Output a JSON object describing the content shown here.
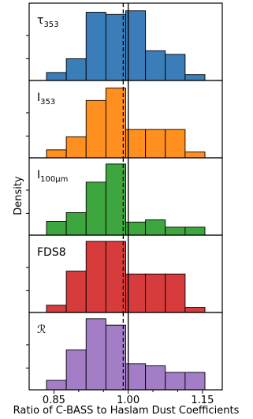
{
  "chart_data": {
    "type": "bar",
    "xlabel": "Ratio of C-BASS to Haslam Dust Coefficients",
    "ylabel": "Density",
    "x_ticks": [
      "0.85",
      "0.90",
      "0.95",
      "1.00",
      "1.05",
      "1.10",
      "1.15"
    ],
    "x_tick_labels": [
      "0.85",
      "1.00",
      "1.15"
    ],
    "xlim": [
      0.8,
      1.19
    ],
    "reference_lines": {
      "solid": 1.0,
      "dashed": 0.99
    },
    "bin_edges": [
      0.835,
      0.875,
      0.915,
      0.955,
      0.995,
      1.035,
      1.075,
      1.115,
      1.155
    ],
    "panels": [
      {
        "label_main": "τ",
        "label_sub": "353",
        "color": "#3A7DB8",
        "ylim": [
          0,
          10
        ],
        "values": [
          1.1,
          3.0,
          9.4,
          9.1,
          9.6,
          4.1,
          3.6,
          0.8
        ]
      },
      {
        "label_main": "I",
        "label_sub": "353",
        "color": "#FF8F1F",
        "ylim": [
          0,
          10
        ],
        "values": [
          1.1,
          2.9,
          7.9,
          9.6,
          3.9,
          3.9,
          3.9,
          0.8
        ]
      },
      {
        "label_main": "I",
        "label_sub": "100μm",
        "color": "#3EA63E",
        "ylim": [
          0,
          10
        ],
        "values": [
          1.9,
          3.1,
          7.3,
          9.8,
          1.8,
          2.1,
          1.1,
          1.1
        ]
      },
      {
        "label_main": "FDS8",
        "label_sub": "",
        "color": "#D83B3B",
        "ylim": [
          0,
          10
        ],
        "values": [
          1.0,
          5.7,
          9.8,
          9.8,
          5.3,
          5.3,
          5.3,
          0.7
        ]
      },
      {
        "label_main": "ℛ",
        "label_sub": "",
        "color": "#A37DC6",
        "ylim": [
          0,
          10
        ],
        "values": [
          1.3,
          5.5,
          9.8,
          8.9,
          3.6,
          3.3,
          2.4,
          2.4
        ]
      }
    ]
  }
}
